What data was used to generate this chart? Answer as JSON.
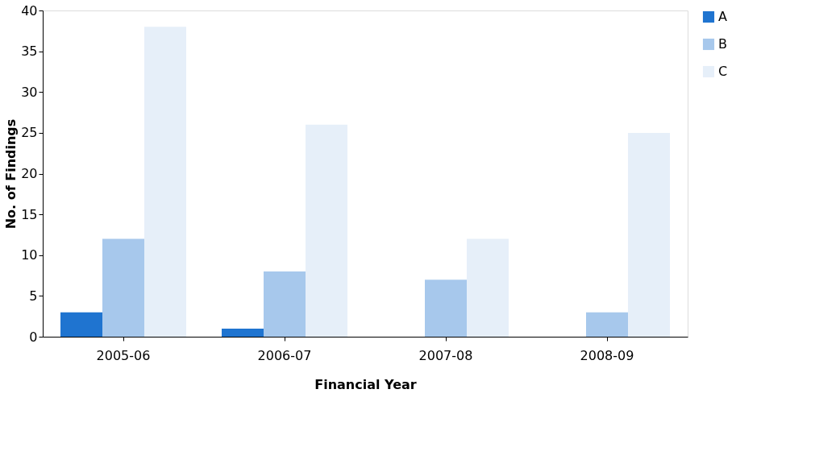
{
  "chart_data": {
    "type": "bar",
    "xlabel": "Financial Year",
    "ylabel": "No. of Findings",
    "categories": [
      "2005-06",
      "2006-07",
      "2007-08",
      "2008-09"
    ],
    "series": [
      {
        "name": "A",
        "color": "#1f74d0",
        "values": [
          3,
          1,
          0,
          0
        ]
      },
      {
        "name": "B",
        "color": "#a7c8ec",
        "values": [
          12,
          8,
          7,
          3
        ]
      },
      {
        "name": "C",
        "color": "#e6eff9",
        "values": [
          38,
          26,
          12,
          25
        ]
      }
    ],
    "ylim": [
      0,
      40
    ],
    "yticks": [
      0,
      5,
      10,
      15,
      20,
      25,
      30,
      35,
      40
    ],
    "grid": false,
    "legend": "right"
  }
}
